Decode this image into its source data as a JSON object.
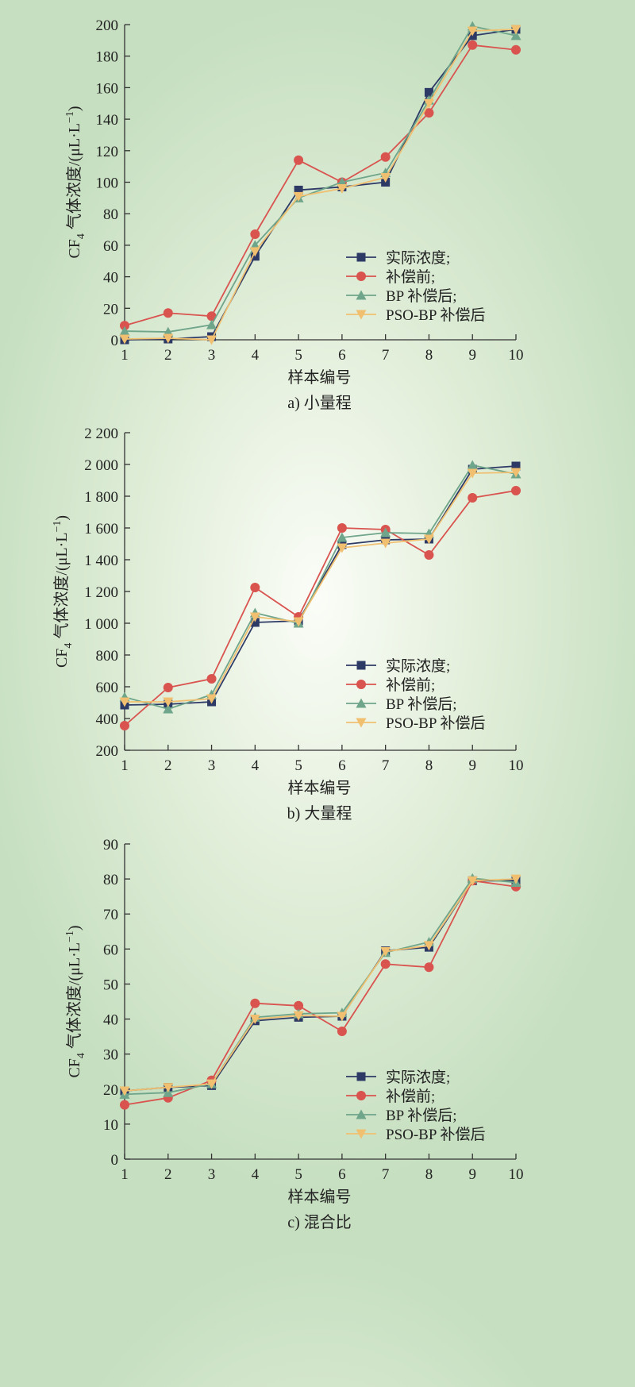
{
  "chart_data": [
    {
      "type": "line",
      "caption": "a) 小量程",
      "xlabel": "样本编号",
      "ylabel_main": "CF",
      "ylabel_sub": "4",
      "ylabel_rest": " 气体浓度/(μL·L",
      "ylabel_sup": "−1",
      "ylabel_end": ")",
      "x": [
        1,
        2,
        3,
        4,
        5,
        6,
        7,
        8,
        9,
        10
      ],
      "xticks": [
        "1",
        "2",
        "3",
        "4",
        "5",
        "6",
        "7",
        "8",
        "9",
        "10"
      ],
      "ylim": [
        0,
        200
      ],
      "yticks": [
        0,
        20,
        40,
        60,
        80,
        100,
        120,
        140,
        160,
        180,
        200
      ],
      "ytick_labels": [
        "0",
        "20",
        "40",
        "60",
        "80",
        "100",
        "120",
        "140",
        "160",
        "180",
        "200"
      ],
      "legend_position": "lower-right",
      "series": [
        {
          "name": "实际浓度;",
          "color": "#2e3a66",
          "marker": "square",
          "values": [
            0,
            0.5,
            2,
            53,
            95,
            97,
            100,
            157,
            193,
            197
          ]
        },
        {
          "name": "补偿前;",
          "color": "#d9534f",
          "marker": "circle",
          "values": [
            9,
            17,
            15,
            67,
            114,
            100,
            116,
            144,
            187,
            184
          ]
        },
        {
          "name": "BP 补偿后;",
          "color": "#6fa58a",
          "marker": "triangle-up",
          "values": [
            5.5,
            5,
            9.5,
            60,
            90,
            100,
            106,
            152,
            199,
            193
          ]
        },
        {
          "name": "PSO-BP 补偿后",
          "color": "#f0c070",
          "marker": "triangle-down",
          "values": [
            0.5,
            1,
            0,
            56,
            91,
            96,
            103,
            150,
            196,
            197
          ]
        }
      ]
    },
    {
      "type": "line",
      "caption": "b) 大量程",
      "xlabel": "样本编号",
      "ylabel_main": "CF",
      "ylabel_sub": "4",
      "ylabel_rest": " 气体浓度/(μL·L",
      "ylabel_sup": "−1",
      "ylabel_end": ")",
      "x": [
        1,
        2,
        3,
        4,
        5,
        6,
        7,
        8,
        9,
        10
      ],
      "xticks": [
        "1",
        "2",
        "3",
        "4",
        "5",
        "6",
        "7",
        "8",
        "9",
        "10"
      ],
      "ylim": [
        200,
        2200
      ],
      "yticks": [
        200,
        400,
        600,
        800,
        1000,
        1200,
        1400,
        1600,
        1800,
        2000,
        2200
      ],
      "ytick_labels": [
        "200",
        "400",
        "600",
        "800",
        "1 000",
        "1 200",
        "1 400",
        "1 600",
        "1 800",
        "2 000",
        "2 200"
      ],
      "legend_position": "lower-right",
      "series": [
        {
          "name": "实际浓度;",
          "color": "#2e3a66",
          "marker": "square",
          "values": [
            485,
            490,
            505,
            1005,
            1015,
            1495,
            1525,
            1530,
            1970,
            1990
          ]
        },
        {
          "name": "补偿前;",
          "color": "#d9534f",
          "marker": "circle",
          "values": [
            355,
            595,
            650,
            1225,
            1040,
            1600,
            1590,
            1430,
            1790,
            1835
          ]
        },
        {
          "name": "BP 补偿后;",
          "color": "#6fa58a",
          "marker": "triangle-up",
          "values": [
            535,
            460,
            550,
            1065,
            1000,
            1540,
            1570,
            1565,
            1995,
            1940
          ]
        },
        {
          "name": "PSO-BP 补偿后",
          "color": "#f0c070",
          "marker": "triangle-down",
          "values": [
            505,
            505,
            525,
            1040,
            1010,
            1475,
            1505,
            1530,
            1945,
            1950
          ]
        }
      ]
    },
    {
      "type": "line",
      "caption": "c) 混合比",
      "xlabel": "样本编号",
      "ylabel_main": "CF",
      "ylabel_sub": "4",
      "ylabel_rest": " 气体浓度/(μL·L",
      "ylabel_sup": "−1",
      "ylabel_end": ")",
      "x": [
        1,
        2,
        3,
        4,
        5,
        6,
        7,
        8,
        9,
        10
      ],
      "xticks": [
        "1",
        "2",
        "3",
        "4",
        "5",
        "6",
        "7",
        "8",
        "9",
        "10"
      ],
      "ylim": [
        0,
        90
      ],
      "yticks": [
        0,
        10,
        20,
        30,
        40,
        50,
        60,
        70,
        80,
        90
      ],
      "ytick_labels": [
        "0",
        "10",
        "20",
        "30",
        "40",
        "50",
        "60",
        "70",
        "80",
        "90"
      ],
      "legend_position": "lower-right",
      "series": [
        {
          "name": "实际浓度;",
          "color": "#2e3a66",
          "marker": "square",
          "values": [
            19.5,
            20.5,
            21,
            39.5,
            40.5,
            40.8,
            59.5,
            60.5,
            79.5,
            79.5
          ]
        },
        {
          "name": "补偿前;",
          "color": "#d9534f",
          "marker": "circle",
          "values": [
            15.5,
            17.5,
            22.5,
            44.5,
            43.8,
            36.5,
            55.7,
            54.8,
            79.5,
            77.8
          ]
        },
        {
          "name": "BP 补偿后;",
          "color": "#6fa58a",
          "marker": "triangle-up",
          "values": [
            18.5,
            19,
            21.5,
            40.5,
            41.5,
            41.8,
            59,
            62,
            80.2,
            79
          ]
        },
        {
          "name": "PSO-BP 补偿后",
          "color": "#f0c070",
          "marker": "triangle-down",
          "values": [
            19.5,
            20.5,
            21.5,
            40,
            41,
            40.8,
            59.3,
            61,
            79.5,
            80
          ]
        }
      ]
    }
  ]
}
